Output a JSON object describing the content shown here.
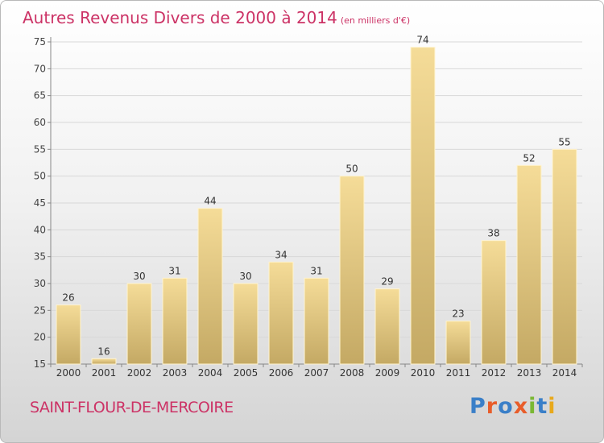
{
  "header": {
    "title": "Autres Revenus Divers de 2000 à 2014",
    "subtitle": "(en milliers d'€)"
  },
  "footer": {
    "commune": "SAINT-FLOUR-DE-MERCOIRE",
    "logo_text": "Proxiti"
  },
  "colors": {
    "title": "#cc3366",
    "bar_top": "#f5dc98",
    "bar_bottom": "#c4a964",
    "logo_letters": [
      "#3a7fc8",
      "#e85d2a",
      "#3a7fc8",
      "#e85d2a",
      "#7ab833",
      "#3a7fc8",
      "#e8a91c"
    ]
  },
  "chart_data": {
    "type": "bar",
    "title": "Autres Revenus Divers de 2000 à 2014",
    "subtitle": "(en milliers d'€)",
    "categories": [
      "2000",
      "2001",
      "2002",
      "2003",
      "2004",
      "2005",
      "2006",
      "2007",
      "2008",
      "2009",
      "2010",
      "2011",
      "2012",
      "2013",
      "2014"
    ],
    "values": [
      26,
      16,
      30,
      31,
      44,
      30,
      34,
      31,
      50,
      29,
      74,
      23,
      38,
      52,
      55
    ],
    "ylim": [
      15,
      75
    ],
    "yticks": [
      15,
      20,
      25,
      30,
      35,
      40,
      45,
      50,
      55,
      60,
      65,
      70,
      75
    ],
    "grid": true,
    "data_labels": true
  }
}
